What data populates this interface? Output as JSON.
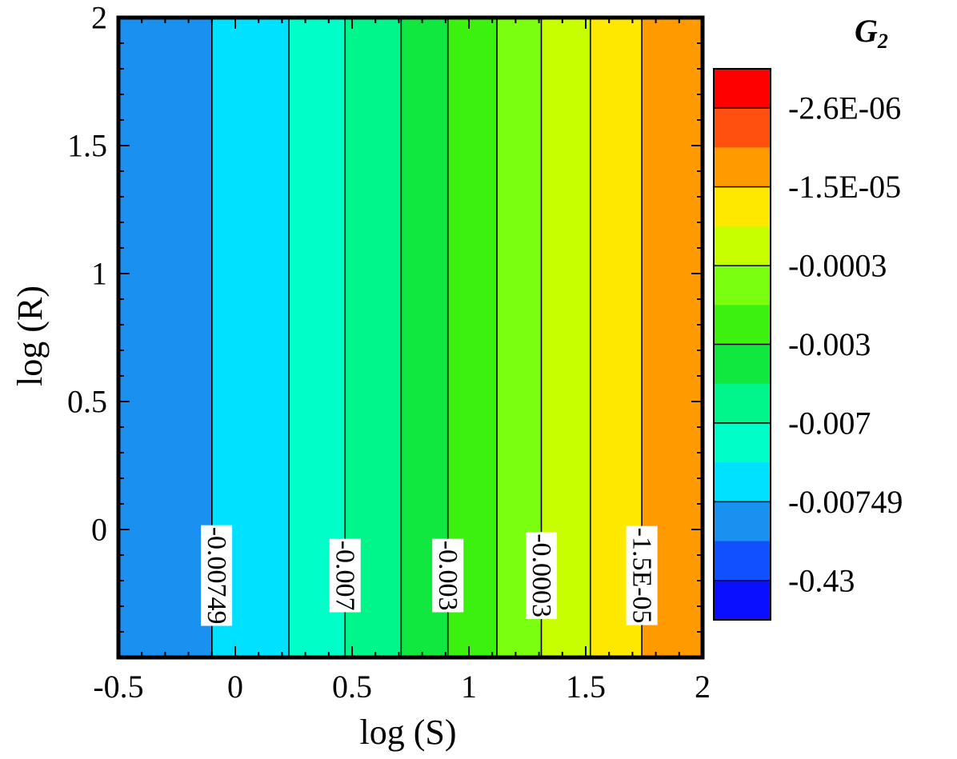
{
  "chart_data": {
    "type": "heatmap",
    "title": "",
    "xlabel": "log (S)",
    "ylabel": "log (R)",
    "xlim": [
      -0.5,
      2.0
    ],
    "ylim": [
      -0.5,
      2.0
    ],
    "xticks": [
      -0.5,
      0,
      0.5,
      1,
      1.5,
      2
    ],
    "xtick_labels": [
      "-0.5",
      "0",
      "0.5",
      "1",
      "1.5",
      "2"
    ],
    "yticks": [
      0,
      0.5,
      1,
      1.5,
      2
    ],
    "ytick_labels": [
      "0",
      "0.5",
      "1",
      "1.5",
      "2"
    ],
    "note": "filled contour bands vertical (value depends only on log(S))",
    "bands": [
      {
        "x0": -0.5,
        "x1": -0.1,
        "color": "#1a90f0"
      },
      {
        "x0": -0.1,
        "x1": 0.23,
        "color": "#00e0ff"
      },
      {
        "x0": 0.23,
        "x1": 0.47,
        "color": "#00ffc8"
      },
      {
        "x0": 0.47,
        "x1": 0.71,
        "color": "#00f58a"
      },
      {
        "x0": 0.71,
        "x1": 0.91,
        "color": "#10e840"
      },
      {
        "x0": 0.91,
        "x1": 1.12,
        "color": "#3cf010"
      },
      {
        "x0": 1.12,
        "x1": 1.31,
        "color": "#7aff10"
      },
      {
        "x0": 1.31,
        "x1": 1.52,
        "color": "#c8ff00"
      },
      {
        "x0": 1.52,
        "x1": 1.74,
        "color": "#ffe800"
      },
      {
        "x0": 1.74,
        "x1": 2.0,
        "color": "#ff9a00"
      }
    ],
    "contour_lines": [
      -0.1,
      0.23,
      0.47,
      0.71,
      0.91,
      1.12,
      1.31,
      1.52,
      1.74
    ],
    "contour_labels": [
      {
        "x": -0.08,
        "y": -0.18,
        "text": "-0.00749"
      },
      {
        "x": 0.47,
        "y": -0.18,
        "text": "-0.007"
      },
      {
        "x": 0.91,
        "y": -0.18,
        "text": "-0.003"
      },
      {
        "x": 1.31,
        "y": -0.18,
        "text": "-0.0003"
      },
      {
        "x": 1.74,
        "y": -0.18,
        "text": "-1.5E-05"
      }
    ],
    "colorbar": {
      "title": "G",
      "title_subscript": "2",
      "labels": [
        "-2.6E-06",
        "-1.5E-05",
        "-0.0003",
        "-0.003",
        "-0.007",
        "-0.00749",
        "-0.43"
      ],
      "levels_top_to_bottom": [
        "#ff0000",
        "#ff5010",
        "#ff9a00",
        "#ffe800",
        "#c8ff00",
        "#7aff10",
        "#3cf010",
        "#10e840",
        "#00f58a",
        "#00ffc8",
        "#00e0ff",
        "#1a90f0",
        "#1050ff",
        "#0a10ff"
      ],
      "label_levels": [
        1,
        3,
        5,
        7,
        9,
        11,
        13
      ]
    }
  }
}
